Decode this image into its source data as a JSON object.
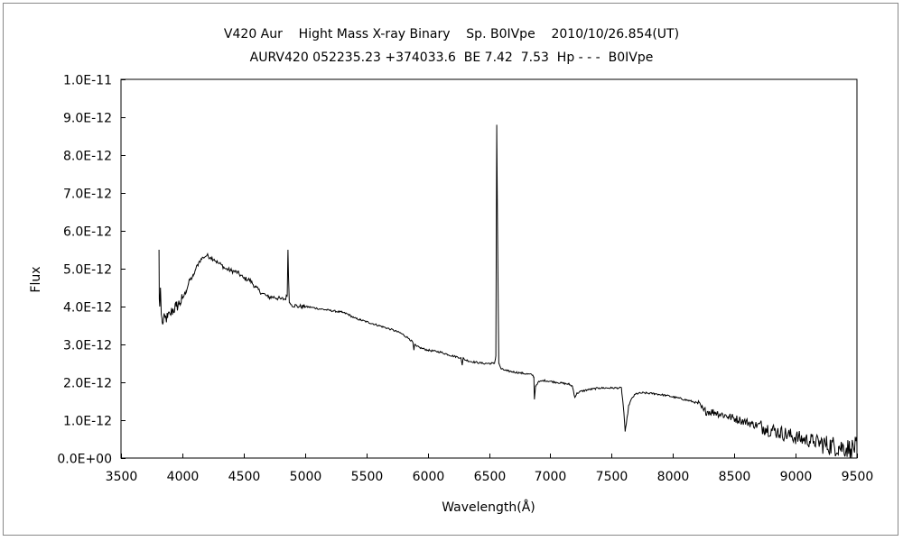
{
  "chart_data": {
    "type": "line",
    "title": "V420 Aur    Hight Mass X-ray Binary    Sp. B0IVpe    2010/10/26.854(UT)",
    "subtitle": "AURV420 052235.23 +374033.6  BE 7.42  7.53  Hp - - -  B0IVpe",
    "xlabel": "Wavelength(Å)",
    "ylabel": "Flux",
    "xlim": [
      3500,
      9500
    ],
    "ylim": [
      0,
      1e-11
    ],
    "y_scale_note": "y values below in units of 1E-12",
    "x_ticks": [
      3500,
      4000,
      4500,
      5000,
      5500,
      6000,
      6500,
      7000,
      7500,
      8000,
      8500,
      9000,
      9500
    ],
    "x_tick_labels": [
      "3500",
      "4000",
      "4500",
      "5000",
      "5500",
      "6000",
      "6500",
      "7000",
      "7500",
      "8000",
      "8500",
      "9000",
      "9500"
    ],
    "y_ticks": [
      0,
      1,
      2,
      3,
      4,
      5,
      6,
      7,
      8,
      9,
      10
    ],
    "y_tick_labels": [
      "0.0E+00",
      "1.0E-12",
      "2.0E-12",
      "3.0E-12",
      "4.0E-12",
      "5.0E-12",
      "6.0E-12",
      "7.0E-12",
      "8.0E-12",
      "9.0E-12",
      "1.0E-11"
    ],
    "grid": false,
    "series": [
      {
        "name": "V420 Aur spectrum",
        "x": [
          3810,
          3812,
          3816,
          3822,
          3828,
          3835,
          3845,
          3860,
          3880,
          3900,
          3920,
          3950,
          3980,
          4000,
          4030,
          4060,
          4090,
          4110,
          4140,
          4170,
          4200,
          4230,
          4260,
          4290,
          4320,
          4350,
          4400,
          4450,
          4500,
          4550,
          4600,
          4650,
          4680,
          4700,
          4750,
          4800,
          4840,
          4855,
          4861,
          4866,
          4872,
          4890,
          4950,
          5000,
          5050,
          5100,
          5200,
          5300,
          5350,
          5400,
          5450,
          5500,
          5600,
          5700,
          5780,
          5850,
          5880,
          5888,
          5895,
          5910,
          5950,
          6000,
          6100,
          6200,
          6270,
          6282,
          6290,
          6300,
          6350,
          6450,
          6520,
          6545,
          6556,
          6563,
          6570,
          6580,
          6600,
          6650,
          6750,
          6850,
          6866,
          6870,
          6880,
          6900,
          6950,
          7050,
          7150,
          7180,
          7200,
          7215,
          7240,
          7300,
          7400,
          7500,
          7580,
          7600,
          7610,
          7620,
          7640,
          7670,
          7700,
          7750,
          7850,
          7950,
          8050,
          8150,
          8200,
          8250,
          8350,
          8450,
          8550,
          8650,
          8750,
          8850,
          8950,
          9050,
          9150,
          9250,
          9350,
          9450,
          9500
        ],
        "y": [
          5.5,
          4.2,
          4.0,
          4.5,
          3.8,
          3.6,
          3.6,
          3.7,
          3.7,
          3.8,
          3.9,
          4.0,
          4.1,
          4.2,
          4.4,
          4.7,
          4.8,
          5.0,
          5.2,
          5.3,
          5.35,
          5.3,
          5.25,
          5.15,
          5.1,
          5.0,
          4.95,
          4.9,
          4.75,
          4.7,
          4.5,
          4.35,
          4.3,
          4.25,
          4.25,
          4.2,
          4.2,
          4.3,
          5.5,
          4.8,
          4.1,
          4.05,
          4.0,
          4.0,
          3.98,
          3.95,
          3.9,
          3.85,
          3.8,
          3.7,
          3.65,
          3.6,
          3.5,
          3.4,
          3.3,
          3.15,
          3.05,
          2.85,
          3.0,
          2.95,
          2.9,
          2.85,
          2.8,
          2.7,
          2.65,
          2.45,
          2.65,
          2.6,
          2.55,
          2.5,
          2.5,
          2.5,
          2.7,
          8.8,
          6.0,
          2.5,
          2.35,
          2.3,
          2.25,
          2.2,
          2.15,
          1.55,
          1.9,
          2.0,
          2.05,
          2.0,
          1.95,
          1.9,
          1.6,
          1.7,
          1.75,
          1.8,
          1.85,
          1.85,
          1.85,
          1.2,
          0.7,
          0.9,
          1.4,
          1.6,
          1.7,
          1.72,
          1.7,
          1.65,
          1.58,
          1.5,
          1.45,
          1.25,
          1.2,
          1.1,
          1.0,
          0.9,
          0.8,
          0.7,
          0.6,
          0.5,
          0.45,
          0.35,
          0.3,
          0.25,
          0.3
        ]
      }
    ]
  }
}
